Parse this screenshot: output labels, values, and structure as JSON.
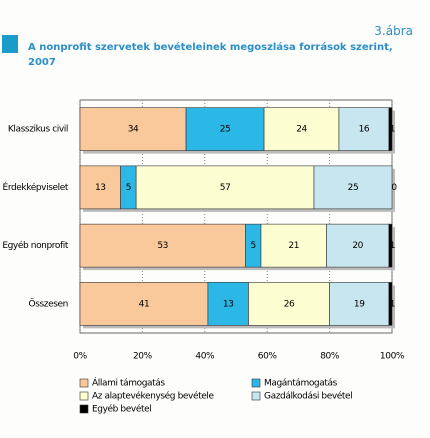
{
  "figure_label": "3.ábra",
  "chart_data": {
    "type": "stacked-bar-horizontal",
    "title": "A nonprofit szervetek bevételeinek megoszlása források szerint, 2007",
    "categories": [
      "Klasszikus civil",
      "Érdekképviselet",
      "Egyéb nonprofit",
      "Összesen"
    ],
    "series": [
      {
        "name": "Állami támogatás",
        "color": "#f9c89b",
        "values": [
          34,
          13,
          53,
          41
        ]
      },
      {
        "name": "Magántámogatás",
        "color": "#2bb8e6",
        "values": [
          25,
          5,
          5,
          13
        ]
      },
      {
        "name": "Az alaptevékenység bevétele",
        "color": "#fdfdd2",
        "values": [
          24,
          57,
          21,
          26
        ]
      },
      {
        "name": "Gazdálkodási bevétel",
        "color": "#c8e6ef",
        "values": [
          16,
          25,
          20,
          19
        ]
      },
      {
        "name": "Egyéb bevétel",
        "color": "#000000",
        "values": [
          1,
          0,
          1,
          1
        ]
      }
    ],
    "xlim": [
      0,
      100
    ],
    "xticks": [
      {
        "value": 0,
        "label": "0%"
      },
      {
        "value": 20,
        "label": "20%"
      },
      {
        "value": 40,
        "label": "40%"
      },
      {
        "value": 60,
        "label": "60%"
      },
      {
        "value": 80,
        "label": "80%"
      },
      {
        "value": 100,
        "label": "100%"
      }
    ],
    "grid": true
  }
}
